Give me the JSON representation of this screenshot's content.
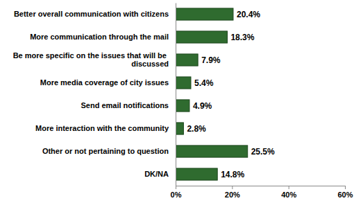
{
  "chart_data": {
    "type": "bar",
    "orientation": "horizontal",
    "categories": [
      "Better overall communication with citizens",
      "More communication through the mail",
      "Be more specific on the issues that will be discussed",
      "More media coverage of city issues",
      "Send email notifications",
      "More interaction with the community",
      "Other or not pertaining to question",
      "DK/NA"
    ],
    "values": [
      20.4,
      18.3,
      7.9,
      5.4,
      4.9,
      2.8,
      25.5,
      14.8
    ],
    "value_labels": [
      "20.4%",
      "18.3%",
      "7.9%",
      "5.4%",
      "4.9%",
      "2.8%",
      "25.5%",
      "14.8%"
    ],
    "color": "#2f6b2f",
    "xlim": [
      0,
      60
    ],
    "xticks": [
      {
        "value": 0,
        "label": "0%"
      },
      {
        "value": 20,
        "label": "20%"
      },
      {
        "value": 40,
        "label": "40%"
      },
      {
        "value": 60,
        "label": "60%"
      }
    ],
    "data_labels": true,
    "grid": false
  }
}
